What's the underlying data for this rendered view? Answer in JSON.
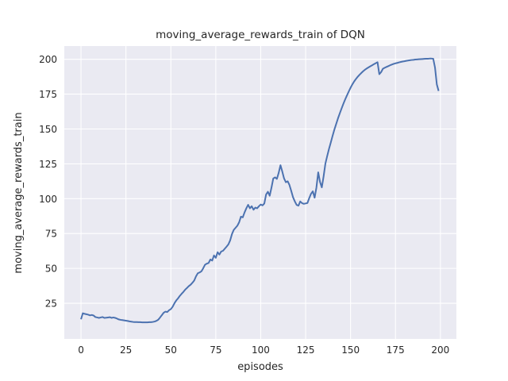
{
  "figure": {
    "background": "#ffffff"
  },
  "chart_data": {
    "type": "line",
    "title": "moving_average_rewards_train of DQN",
    "xlabel": "episodes",
    "ylabel": "moving_average_rewards_train",
    "grid": true,
    "legend": null,
    "xticks": [
      0,
      25,
      50,
      75,
      100,
      125,
      150,
      175,
      200
    ],
    "yticks": [
      25,
      50,
      75,
      100,
      125,
      150,
      175,
      200
    ],
    "xlim": [
      -9.3,
      208.9
    ],
    "ylim": [
      -0.6,
      209.5
    ],
    "x_start": 0,
    "x_step": 1,
    "series": [
      {
        "name": "moving_average_rewards_train",
        "color": "#4C72B0",
        "values": [
          13.5,
          17.8,
          17.4,
          17.1,
          16.8,
          16.3,
          16.6,
          16.2,
          15.1,
          14.8,
          14.5,
          14.8,
          15.1,
          14.5,
          14.6,
          14.8,
          15.0,
          14.5,
          14.8,
          14.5,
          14.0,
          13.4,
          13.1,
          12.9,
          12.7,
          12.5,
          12.3,
          12.0,
          11.8,
          11.6,
          11.5,
          11.5,
          11.4,
          11.4,
          11.3,
          11.3,
          11.3,
          11.3,
          11.4,
          11.4,
          11.6,
          11.9,
          12.4,
          13.2,
          14.8,
          16.5,
          18.2,
          19.0,
          18.7,
          20.0,
          20.8,
          22.5,
          25.0,
          27.0,
          28.5,
          30.3,
          31.8,
          33.2,
          34.8,
          36.0,
          37.3,
          38.3,
          39.7,
          41.3,
          44.3,
          46.5,
          47.1,
          47.9,
          50.1,
          52.6,
          53.4,
          53.9,
          56.4,
          55.6,
          59.3,
          57.6,
          61.6,
          59.9,
          62.1,
          62.6,
          64.1,
          65.6,
          67.2,
          70.1,
          74.6,
          77.6,
          79.1,
          80.6,
          83.1,
          87.1,
          86.6,
          90.1,
          93.1,
          95.6,
          93.1,
          94.6,
          92.1,
          93.6,
          93.1,
          94.6,
          95.8,
          95.2,
          96.5,
          103.0,
          105.0,
          102.1,
          108.0,
          114.5,
          115.3,
          114.2,
          118.5,
          124.0,
          119.5,
          114.5,
          111.8,
          112.5,
          109.8,
          105.5,
          101.0,
          98.0,
          95.5,
          95.0,
          98.0,
          96.8,
          96.3,
          96.6,
          96.9,
          100.4,
          103.5,
          105.3,
          100.7,
          108.0,
          118.9,
          112.0,
          108.1,
          116.0,
          125.2,
          130.6,
          135.7,
          140.3,
          145.1,
          149.6,
          153.6,
          157.6,
          161.2,
          164.7,
          168.1,
          171.2,
          174.1,
          176.9,
          179.6,
          182.0,
          184.1,
          185.9,
          187.5,
          188.9,
          190.2,
          191.4,
          192.5,
          193.4,
          194.2,
          195.0,
          195.7,
          196.5,
          197.2,
          197.9,
          189.3,
          190.8,
          193.2,
          193.9,
          194.5,
          195.1,
          195.7,
          196.2,
          196.7,
          197.1,
          197.4,
          197.8,
          198.1,
          198.4,
          198.6,
          198.9,
          199.1,
          199.3,
          199.5,
          199.6,
          199.8,
          199.9,
          200.0,
          200.1,
          200.2,
          200.3,
          200.4,
          200.4,
          200.5,
          200.5,
          200.4,
          194.0,
          182.0,
          177.3
        ]
      }
    ],
    "style": {
      "line_color": "#4C72B0",
      "line_width": 2,
      "plot_background": "#EAEAF2",
      "grid_color": "#FFFFFF",
      "text_color": "#262626"
    }
  }
}
